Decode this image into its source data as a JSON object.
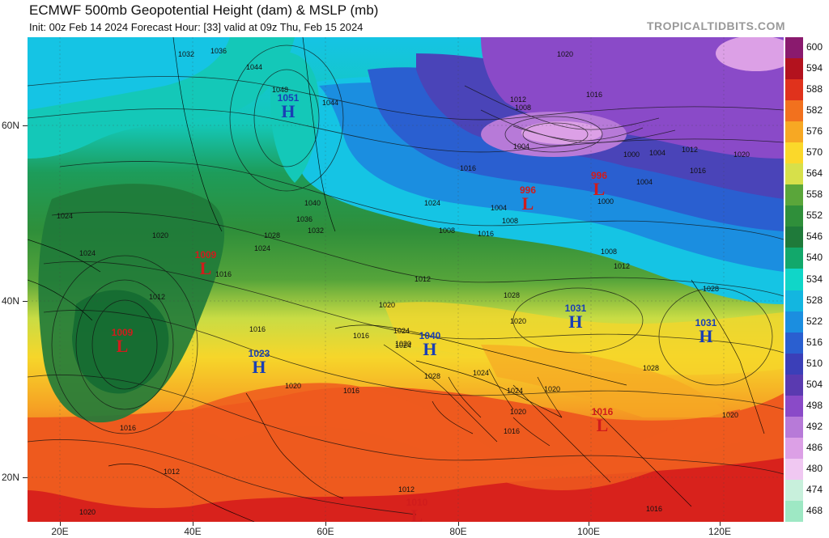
{
  "header": {
    "title": "ECMWF 500mb Geopotential Height (dam) & MSLP (mb)",
    "subtitle": "Init: 00z Feb 14 2024    Forecast Hour: [33]    valid at 09z Thu, Feb 15 2024",
    "brand": "TROPICALTIDBITS.COM"
  },
  "axes": {
    "lat_labels": [
      "60N",
      "40N",
      "20N"
    ],
    "lon_labels": [
      "20E",
      "40E",
      "60E",
      "80E",
      "100E",
      "120E"
    ]
  },
  "colorbar": {
    "levels": [
      "600",
      "594",
      "588",
      "582",
      "576",
      "570",
      "564",
      "558",
      "552",
      "546",
      "540",
      "534",
      "528",
      "522",
      "516",
      "510",
      "504",
      "498",
      "492",
      "486",
      "480",
      "474",
      "468"
    ],
    "colors": [
      "#8a1a6e",
      "#b3121e",
      "#e0321c",
      "#f2711e",
      "#f7a823",
      "#fbd82a",
      "#d7e04a",
      "#5aa63a",
      "#2f8f3a",
      "#1f7a3a",
      "#12a86b",
      "#10d6c8",
      "#13b6e0",
      "#1b8ee0",
      "#2a5fd0",
      "#3b3fb8",
      "#5a3ab0",
      "#8a4ac8",
      "#b77ad8",
      "#dca0e6",
      "#f0c8f2",
      "#c8f0dc",
      "#9ee8c4"
    ]
  },
  "centers": [
    {
      "type": "H",
      "value": "1051"
    },
    {
      "type": "L",
      "value": "1009"
    },
    {
      "type": "L",
      "value": "1009"
    },
    {
      "type": "H",
      "value": "1023"
    },
    {
      "type": "H",
      "value": "1040"
    },
    {
      "type": "L",
      "value": "996"
    },
    {
      "type": "L",
      "value": "996"
    },
    {
      "type": "H",
      "value": "1031"
    },
    {
      "type": "H",
      "value": "1031"
    },
    {
      "type": "L",
      "value": "1016"
    },
    {
      "type": "L",
      "value": "1010"
    }
  ],
  "isobar_labels": [
    "1032",
    "1036",
    "1044",
    "1048",
    "1044",
    "1020",
    "1012",
    "1008",
    "1016",
    "1004",
    "1000",
    "1004",
    "1012",
    "1020",
    "1016",
    "1016",
    "1024",
    "1040",
    "1036",
    "1032",
    "1028",
    "1024",
    "1020",
    "1024",
    "1016",
    "1012",
    "1024",
    "1008",
    "1004",
    "1008",
    "1008",
    "1012",
    "1000",
    "1004",
    "1016",
    "1028",
    "1012",
    "1020",
    "1016",
    "1024",
    "1028",
    "1020",
    "1016",
    "1024",
    "1020",
    "1024",
    "1028",
    "1020",
    "1028",
    "1024",
    "1020",
    "1020",
    "1016",
    "1016",
    "1012",
    "1016",
    "1020",
    "1016",
    "1020",
    "1012"
  ]
}
